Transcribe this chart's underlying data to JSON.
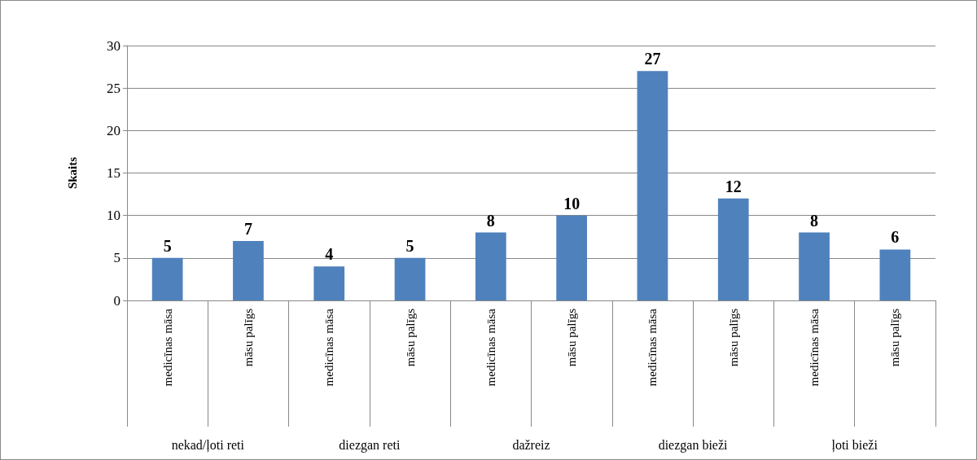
{
  "chart_data": {
    "type": "bar",
    "ylabel": "Skaits",
    "categories": [
      "medicīnas māsa",
      "māsu palīgs",
      "medicīnas māsa",
      "māsu palīgs",
      "medicīnas māsa",
      "māsu palīgs",
      "medicīnas māsa",
      "māsu palīgs",
      "medicīnas māsa",
      "māsu palīgs"
    ],
    "values": [
      5,
      7,
      4,
      5,
      8,
      10,
      27,
      12,
      8,
      6
    ],
    "color": "#4f81bd",
    "ylim": [
      0,
      30
    ],
    "yticks": [
      0,
      5,
      10,
      15,
      20,
      25,
      30
    ],
    "grid": "y",
    "data_labels": true,
    "annotations": [
      "nekad/ļoti reti",
      "diezgan reti",
      "dažreiz",
      "diezgan bieži",
      "ļoti bieži"
    ]
  }
}
